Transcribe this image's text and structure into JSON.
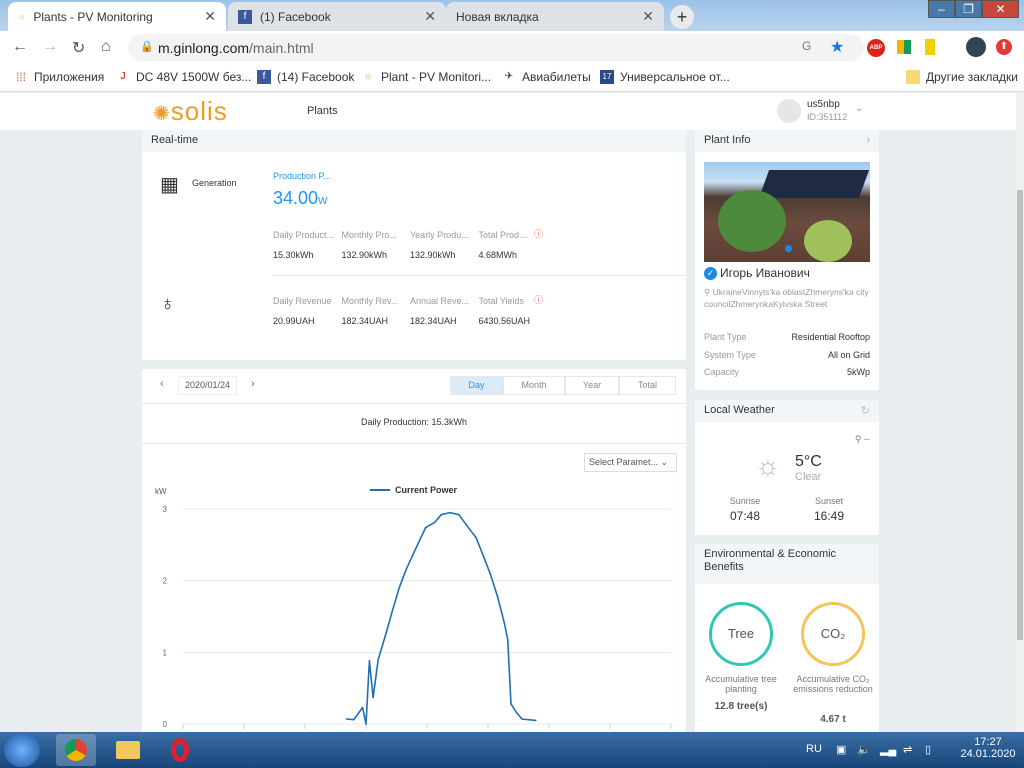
{
  "browser": {
    "tabs": [
      {
        "label": "Plants - PV Monitoring"
      },
      {
        "label": "(1) Facebook"
      },
      {
        "label": "Новая вкладка"
      }
    ],
    "url_host": "m.ginlong.com",
    "url_path": "/main.html",
    "bookmarks": [
      {
        "label": "Приложения"
      },
      {
        "label": "DC 48V 1500W без..."
      },
      {
        "label": "(14) Facebook"
      },
      {
        "label": "Plant - PV Monitori..."
      },
      {
        "label": "Авиабилеты"
      },
      {
        "label": "Универсальное от..."
      }
    ],
    "other_bookmarks": "Другие закладки",
    "extensions": {
      "abp": "ABP"
    }
  },
  "app": {
    "logo": "solis",
    "nav_plants": "Plants",
    "user": {
      "name": "us5nbp",
      "id": "ID:351112"
    }
  },
  "realtime": {
    "title": "Real-time",
    "generation_label": "Generation",
    "production_power_label": "Production P...",
    "production_power_value": "34.00",
    "production_power_unit": "W",
    "production": [
      {
        "label": "Daily Product...",
        "value": "15.30kWh"
      },
      {
        "label": "Monthly Pro...",
        "value": "132.90kWh"
      },
      {
        "label": "Yearly Produ...",
        "value": "132.90kWh"
      },
      {
        "label": "Total Prod...",
        "value": "4.68MWh"
      }
    ],
    "revenue": [
      {
        "label": "Daily Revenue",
        "value": "20.99UAH"
      },
      {
        "label": "Monthly Rev...",
        "value": "182.34UAH"
      },
      {
        "label": "Annual Reve...",
        "value": "182.34UAH"
      },
      {
        "label": "Total Yields",
        "value": "6430.56UAH"
      }
    ]
  },
  "chart_panel": {
    "date": "2020/01/24",
    "periods": [
      {
        "label": "Day",
        "active": true
      },
      {
        "label": "Month"
      },
      {
        "label": "Year"
      },
      {
        "label": "Total"
      }
    ],
    "daily_production": "Daily Production: 15.3kWh",
    "select_param": "Select Paramet..."
  },
  "chart_data": {
    "type": "line",
    "ylabel": "kW",
    "ylim": [
      0,
      3
    ],
    "yticks": [
      "0",
      "1",
      "2",
      "3"
    ],
    "xlim": [
      "00:00",
      "24:00"
    ],
    "grid": true,
    "legend": "top-center",
    "series": [
      {
        "name": "Current Power",
        "color": "#1f6fb2",
        "x": [
          "08:03",
          "08:24",
          "08:50",
          "09:00",
          "09:10",
          "09:21",
          "09:36",
          "09:57",
          "10:18",
          "10:38",
          "10:59",
          "11:30",
          "11:56",
          "12:22",
          "12:42",
          "13:08",
          "13:34",
          "13:59",
          "14:25",
          "14:51",
          "15:07",
          "15:28",
          "15:48",
          "15:58",
          "16:08",
          "16:24",
          "16:40",
          "17:21"
        ],
        "y": [
          0.07,
          0.06,
          0.23,
          0,
          0.88,
          0.37,
          0.9,
          1.23,
          1.58,
          1.9,
          2.16,
          2.48,
          2.74,
          2.81,
          2.92,
          2.95,
          2.92,
          2.76,
          2.6,
          2.29,
          2.09,
          1.78,
          1.41,
          1.18,
          0.28,
          0.16,
          0.07,
          0.05
        ]
      }
    ]
  },
  "plant_info": {
    "title": "Plant Info",
    "owner": "Игорь Иванович",
    "address": "UkraineVinnyts'ka oblastZhmeryns'ka city councilZhmerynkaKyivska Street",
    "rows": [
      {
        "label": "Plant Type",
        "value": "Residential Rooftop"
      },
      {
        "label": "System Type",
        "value": "All on Grid"
      },
      {
        "label": "Capacity",
        "value": "5kWp"
      }
    ]
  },
  "weather": {
    "title": "Local Weather",
    "location": "--",
    "temp": "5°C",
    "condition": "Clear",
    "sunrise_label": "Sunrise",
    "sunrise": "07:48",
    "sunset_label": "Sunset",
    "sunset": "16:49"
  },
  "env": {
    "title": "Environmental & Economic Benefits",
    "tree": {
      "circle": "Tree",
      "label": "Accumulative tree planting",
      "value": "12.8 tree(s)",
      "color": "#2ec8b4"
    },
    "co2": {
      "circle": "CO₂",
      "label": "Accumulative CO₂ emissions reduction",
      "value": "4.67 t",
      "color": "#f5c45a"
    }
  },
  "taskbar": {
    "lang": "RU",
    "time": "17:27",
    "date": "24.01.2020"
  }
}
